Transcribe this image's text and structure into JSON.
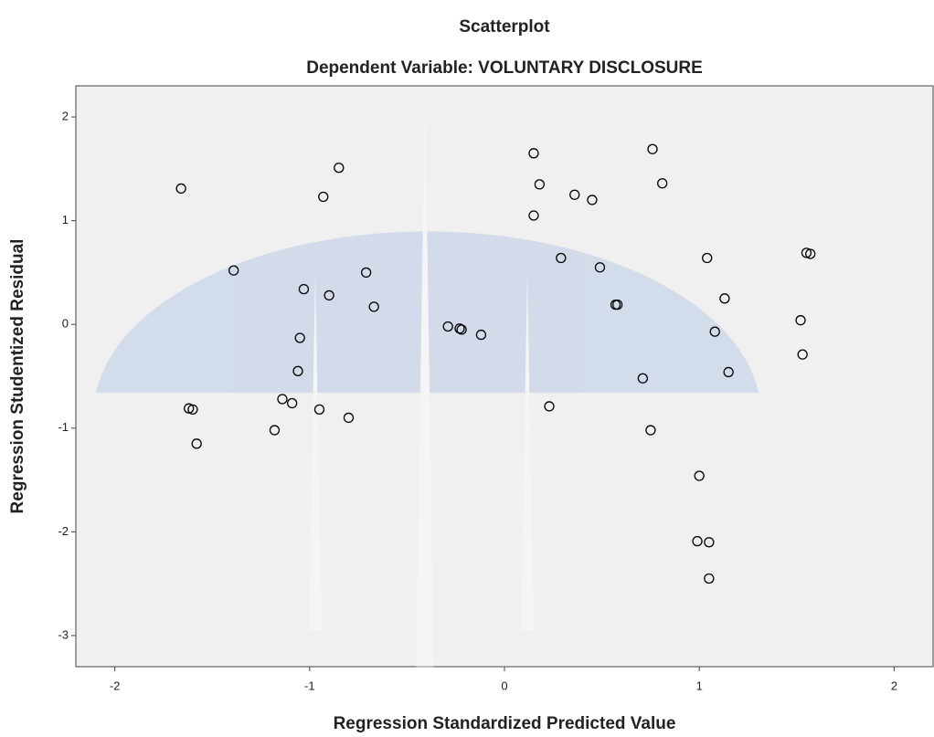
{
  "chart_data": {
    "type": "scatter",
    "title": "Scatterplot",
    "subtitle": "Dependent Variable: VOLUNTARY DISCLOSURE",
    "x_label": "Regression Standardized Predicted Value",
    "y_label": "Regression Studentized Residual",
    "xlim": [
      -2.2,
      2.2
    ],
    "ylim": [
      -3.3,
      2.3
    ],
    "xticks": [
      -2,
      -1,
      0,
      1,
      2
    ],
    "yticks": [
      -3,
      -2,
      -1,
      0,
      1,
      2
    ],
    "color": "#000000",
    "x": [
      -1.66,
      -1.39,
      -1.62,
      -1.6,
      -1.58,
      -1.18,
      -1.14,
      -1.09,
      -1.06,
      -1.05,
      -1.03,
      -0.95,
      -0.93,
      -0.9,
      -0.85,
      -0.8,
      -0.71,
      -0.67,
      -0.29,
      -0.23,
      -0.22,
      -0.12,
      0.15,
      0.18,
      0.15,
      0.23,
      0.29,
      0.36,
      0.45,
      0.49,
      0.57,
      0.58,
      0.71,
      0.75,
      0.76,
      0.81,
      1.0,
      0.99,
      1.05,
      1.05,
      1.04,
      1.08,
      1.13,
      1.15,
      1.52,
      1.53,
      1.55,
      1.57
    ],
    "values": [
      1.31,
      0.52,
      -0.81,
      -0.82,
      -1.15,
      -1.02,
      -0.72,
      -0.76,
      -0.45,
      -0.13,
      0.34,
      -0.82,
      1.23,
      0.28,
      1.51,
      -0.9,
      0.5,
      0.17,
      -0.02,
      -0.04,
      -0.05,
      -0.1,
      1.65,
      1.35,
      1.05,
      -0.79,
      0.64,
      1.25,
      1.2,
      0.55,
      0.19,
      0.19,
      -0.52,
      -1.02,
      1.69,
      1.36,
      -1.46,
      -2.09,
      -2.1,
      -2.45,
      0.64,
      -0.07,
      0.25,
      -0.46,
      0.04,
      -0.29,
      0.69,
      0.68
    ]
  }
}
